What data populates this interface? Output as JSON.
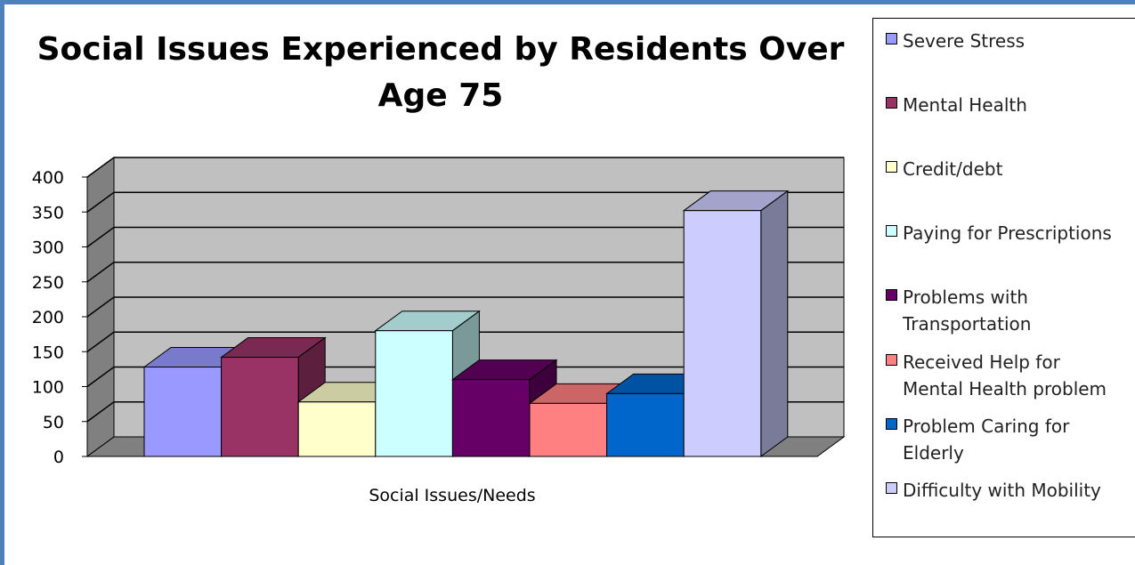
{
  "chart_data": {
    "type": "bar",
    "title": "Social Issues Experienced by Residents Over Age 75",
    "xlabel": "Social Issues/Needs",
    "ylabel": "",
    "ylim": [
      0,
      400
    ],
    "yticks": [
      0,
      50,
      100,
      150,
      200,
      250,
      300,
      350,
      400
    ],
    "grid": true,
    "legend_position": "right",
    "style": "3d-clustered-column",
    "categories": [
      "Social Issues/Needs"
    ],
    "series": [
      {
        "name": "Severe Stress",
        "values": [
          128
        ],
        "color": "#9999ff"
      },
      {
        "name": "Mental Health",
        "values": [
          142
        ],
        "color": "#993366"
      },
      {
        "name": "Credit/debt",
        "values": [
          78
        ],
        "color": "#ffffcc"
      },
      {
        "name": "Paying for Prescriptions",
        "values": [
          180
        ],
        "color": "#ccffff"
      },
      {
        "name": "Problems with Transportation",
        "values": [
          110
        ],
        "color": "#660066"
      },
      {
        "name": "Received Help for Mental Health problem",
        "values": [
          76
        ],
        "color": "#ff8080"
      },
      {
        "name": "Problem Caring for Elderly",
        "values": [
          90
        ],
        "color": "#0066cc"
      },
      {
        "name": "Difficulty with Mobility",
        "values": [
          352
        ],
        "color": "#ccccff"
      }
    ]
  },
  "legend_lines": [
    [
      "Severe Stress"
    ],
    [
      "Mental Health"
    ],
    [
      "Credit/debt"
    ],
    [
      "Paying for Prescriptions"
    ],
    [
      "Problems with",
      "Transportation"
    ],
    [
      "Received Help for",
      "Mental Health problem"
    ],
    [
      "Problem Caring for",
      "Elderly"
    ],
    [
      "Difficulty with Mobility"
    ]
  ]
}
